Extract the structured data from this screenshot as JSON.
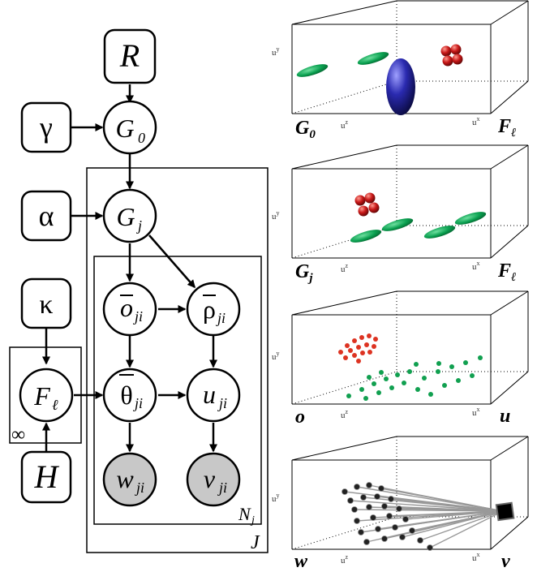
{
  "graph": {
    "nodes": {
      "R": {
        "label": "R"
      },
      "gamma": {
        "label": "γ"
      },
      "G0": {
        "label": "G",
        "sub": "0"
      },
      "alpha": {
        "label": "α"
      },
      "Gj": {
        "label": "G",
        "sub": "j"
      },
      "kappa": {
        "label": "κ"
      },
      "F": {
        "label": "F",
        "sub": "ℓ"
      },
      "H": {
        "label": "H"
      },
      "o": {
        "label": "o",
        "sub": "ji"
      },
      "rho": {
        "label": "ρ",
        "sub": "ji"
      },
      "theta": {
        "label": "θ",
        "sub": "ji"
      },
      "u": {
        "label": "u",
        "sub": "ji"
      },
      "w": {
        "label": "w",
        "sub": "ji",
        "observed": true
      },
      "v": {
        "label": "v",
        "sub": "ji",
        "observed": true
      }
    },
    "plates": {
      "infinity": "∞",
      "Nj": {
        "label": "N",
        "sub": "j"
      },
      "J": "J"
    }
  },
  "panels": [
    {
      "corner_left": {
        "label": "G",
        "sub": "0"
      },
      "corner_right": {
        "label": "F",
        "sub": "ℓ"
      },
      "axis_y": "u",
      "axis_y_sup": "y",
      "axis_z": "u",
      "axis_z_sup": "z",
      "axis_x": "u",
      "axis_x_sup": "x"
    },
    {
      "corner_left": {
        "label": "G",
        "sub": "j"
      },
      "corner_right": {
        "label": "F",
        "sub": "ℓ"
      },
      "axis_y": "u",
      "axis_y_sup": "y",
      "axis_z": "u",
      "axis_z_sup": "z",
      "axis_x": "u",
      "axis_x_sup": "x"
    },
    {
      "corner_left": {
        "label": "o",
        "sub": ""
      },
      "corner_right": {
        "label": "u",
        "sub": ""
      },
      "axis_y": "u",
      "axis_y_sup": "y",
      "axis_z": "u",
      "axis_z_sup": "z",
      "axis_x": "u",
      "axis_x_sup": "x"
    },
    {
      "corner_left": {
        "label": "w",
        "sub": ""
      },
      "corner_right": {
        "label": "v",
        "sub": ""
      },
      "axis_y": "u",
      "axis_y_sup": "y",
      "axis_z": "u",
      "axis_z_sup": "z",
      "axis_x": "u",
      "axis_x_sup": "x"
    }
  ],
  "colors": {
    "ink": "#000000",
    "observed": "#c8c8c8",
    "green": "#0aa050",
    "red": "#cc2020",
    "blue": "#2a2aa0",
    "ray": "#999999"
  }
}
